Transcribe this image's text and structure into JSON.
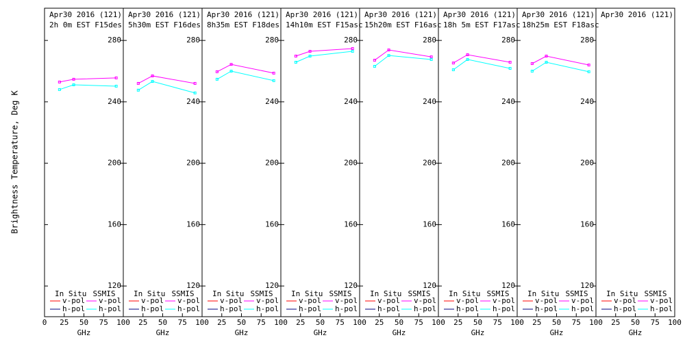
{
  "chart_data": [
    {
      "type": "line",
      "title": "Apr30 2016 (121)",
      "subtitle": "2h 0m EST F15des",
      "ylabel": "Brightness Temperature, Deg K",
      "xlabel": "GHz",
      "x": [
        19,
        37,
        91
      ],
      "xlim": [
        0,
        100
      ],
      "xticks": [
        0,
        25,
        50,
        75,
        100
      ],
      "ylim": [
        100,
        301
      ],
      "yticks": [
        120,
        160,
        200,
        240,
        280
      ],
      "legend_titles": [
        "In Situ",
        "SSMIS"
      ],
      "series": [
        {
          "name": "v-pol",
          "color": "#ff0000",
          "legend_column": 0,
          "values": [
            null,
            null,
            null
          ]
        },
        {
          "name": "h-pol",
          "color": "#000080",
          "legend_column": 0,
          "values": [
            null,
            null,
            null
          ]
        },
        {
          "name": "v-pol",
          "color": "#ff00ff",
          "legend_column": 1,
          "values": [
            252.9,
            254.7,
            255.6
          ]
        },
        {
          "name": "h-pol",
          "color": "#00ffff",
          "legend_column": 1,
          "values": [
            248,
            251.1,
            250.2
          ]
        }
      ]
    },
    {
      "type": "line",
      "title": "Apr30 2016 (121)",
      "subtitle": "5h30m EST F16des",
      "xlabel": "GHz",
      "x": [
        19,
        37,
        91
      ],
      "xlim": [
        0,
        100
      ],
      "xticks": [
        25,
        50,
        75,
        100
      ],
      "ylim": [
        100,
        301
      ],
      "yticks": [
        120,
        160,
        200,
        240,
        280
      ],
      "legend_titles": [
        "In Situ",
        "SSMIS"
      ],
      "series": [
        {
          "name": "v-pol",
          "color": "#ff0000",
          "legend_column": 0,
          "values": [
            null,
            null,
            null
          ]
        },
        {
          "name": "h-pol",
          "color": "#000080",
          "legend_column": 0,
          "values": [
            null,
            null,
            null
          ]
        },
        {
          "name": "v-pol",
          "color": "#ff00ff",
          "legend_column": 1,
          "values": [
            252,
            256.9,
            252
          ]
        },
        {
          "name": "h-pol",
          "color": "#00ffff",
          "legend_column": 1,
          "values": [
            247.6,
            253.3,
            245.8
          ]
        }
      ]
    },
    {
      "type": "line",
      "title": "Apr30 2016 (121)",
      "subtitle": "8h35m EST F18des",
      "xlabel": "GHz",
      "x": [
        19,
        37,
        91
      ],
      "xlim": [
        0,
        100
      ],
      "xticks": [
        25,
        50,
        75,
        100
      ],
      "ylim": [
        100,
        301
      ],
      "yticks": [
        120,
        160,
        200,
        240,
        280
      ],
      "legend_titles": [
        "In Situ",
        "SSMIS"
      ],
      "series": [
        {
          "name": "v-pol",
          "color": "#ff0000",
          "legend_column": 0,
          "values": [
            null,
            null,
            null
          ]
        },
        {
          "name": "h-pol",
          "color": "#000080",
          "legend_column": 0,
          "values": [
            null,
            null,
            null
          ]
        },
        {
          "name": "v-pol",
          "color": "#ff00ff",
          "legend_column": 1,
          "values": [
            259.6,
            264.4,
            258.7
          ]
        },
        {
          "name": "h-pol",
          "color": "#00ffff",
          "legend_column": 1,
          "values": [
            254.7,
            260,
            253.8
          ]
        }
      ]
    },
    {
      "type": "line",
      "title": "Apr30 2016 (121)",
      "subtitle": "14h10m EST F15asc",
      "xlabel": "GHz",
      "x": [
        19,
        37,
        91
      ],
      "xlim": [
        0,
        100
      ],
      "xticks": [
        25,
        50,
        75,
        100
      ],
      "ylim": [
        100,
        301
      ],
      "yticks": [
        120,
        160,
        200,
        240,
        280
      ],
      "legend_titles": [
        "In Situ",
        "SSMIS"
      ],
      "series": [
        {
          "name": "v-pol",
          "color": "#ff0000",
          "legend_column": 0,
          "values": [
            null,
            null,
            null
          ]
        },
        {
          "name": "h-pol",
          "color": "#000080",
          "legend_column": 0,
          "values": [
            null,
            null,
            null
          ]
        },
        {
          "name": "v-pol",
          "color": "#ff00ff",
          "legend_column": 1,
          "values": [
            269.8,
            272.9,
            274.7
          ]
        },
        {
          "name": "h-pol",
          "color": "#00ffff",
          "legend_column": 1,
          "values": [
            265.8,
            269.8,
            272.9
          ]
        }
      ]
    },
    {
      "type": "line",
      "title": "Apr30 2016 (121)",
      "subtitle": "15h20m EST F16asc",
      "xlabel": "GHz",
      "x": [
        19,
        37,
        91
      ],
      "xlim": [
        0,
        100
      ],
      "xticks": [
        25,
        50,
        75,
        100
      ],
      "ylim": [
        100,
        301
      ],
      "yticks": [
        120,
        160,
        200,
        240,
        280
      ],
      "legend_titles": [
        "In Situ",
        "SSMIS"
      ],
      "series": [
        {
          "name": "v-pol",
          "color": "#ff0000",
          "legend_column": 0,
          "values": [
            null,
            null,
            null
          ]
        },
        {
          "name": "h-pol",
          "color": "#000080",
          "legend_column": 0,
          "values": [
            null,
            null,
            null
          ]
        },
        {
          "name": "v-pol",
          "color": "#ff00ff",
          "legend_column": 1,
          "values": [
            267.1,
            273.8,
            269.3
          ]
        },
        {
          "name": "h-pol",
          "color": "#00ffff",
          "legend_column": 1,
          "values": [
            263.1,
            270.2,
            267.6
          ]
        }
      ]
    },
    {
      "type": "line",
      "title": "Apr30 2016 (121)",
      "subtitle": "18h 5m EST F17asc",
      "xlabel": "GHz",
      "x": [
        19,
        37,
        91
      ],
      "xlim": [
        0,
        100
      ],
      "xticks": [
        25,
        50,
        75,
        100
      ],
      "ylim": [
        100,
        301
      ],
      "yticks": [
        120,
        160,
        200,
        240,
        280
      ],
      "legend_titles": [
        "In Situ",
        "SSMIS"
      ],
      "series": [
        {
          "name": "v-pol",
          "color": "#ff0000",
          "legend_column": 0,
          "values": [
            null,
            null,
            null
          ]
        },
        {
          "name": "h-pol",
          "color": "#000080",
          "legend_column": 0,
          "values": [
            null,
            null,
            null
          ]
        },
        {
          "name": "v-pol",
          "color": "#ff00ff",
          "legend_column": 1,
          "values": [
            265.3,
            270.7,
            265.8
          ]
        },
        {
          "name": "h-pol",
          "color": "#00ffff",
          "legend_column": 1,
          "values": [
            260.9,
            267.6,
            261.8
          ]
        }
      ]
    },
    {
      "type": "line",
      "title": "Apr30 2016 (121)",
      "subtitle": "18h25m EST F18asc",
      "xlabel": "GHz",
      "x": [
        19,
        37,
        91
      ],
      "xlim": [
        0,
        100
      ],
      "xticks": [
        25,
        50,
        75,
        100
      ],
      "ylim": [
        100,
        301
      ],
      "yticks": [
        120,
        160,
        200,
        240,
        280
      ],
      "legend_titles": [
        "In Situ",
        "SSMIS"
      ],
      "series": [
        {
          "name": "v-pol",
          "color": "#ff0000",
          "legend_column": 0,
          "values": [
            null,
            null,
            null
          ]
        },
        {
          "name": "h-pol",
          "color": "#000080",
          "legend_column": 0,
          "values": [
            null,
            null,
            null
          ]
        },
        {
          "name": "v-pol",
          "color": "#ff00ff",
          "legend_column": 1,
          "values": [
            264.9,
            269.8,
            264
          ]
        },
        {
          "name": "h-pol",
          "color": "#00ffff",
          "legend_column": 1,
          "values": [
            260,
            265.8,
            259.6
          ]
        }
      ]
    },
    {
      "type": "line",
      "title": "Apr30 2016 (121)",
      "xlabel": "GHz",
      "x": [
        19,
        37,
        91
      ],
      "xlim": [
        0,
        100
      ],
      "xticks": [
        25,
        50,
        75,
        100
      ],
      "ylim": [
        100,
        301
      ],
      "legend_titles": [
        "In Situ",
        "SSMIS"
      ],
      "series": [
        {
          "name": "v-pol",
          "color": "#ff0000",
          "legend_column": 0,
          "values": [
            null,
            null,
            null
          ]
        },
        {
          "name": "h-pol",
          "color": "#000080",
          "legend_column": 0,
          "values": [
            null,
            null,
            null
          ]
        },
        {
          "name": "v-pol",
          "color": "#ff00ff",
          "legend_column": 1,
          "values": [
            null,
            null,
            null
          ]
        },
        {
          "name": "h-pol",
          "color": "#00ffff",
          "legend_column": 1,
          "values": [
            null,
            null,
            null
          ]
        }
      ]
    }
  ]
}
